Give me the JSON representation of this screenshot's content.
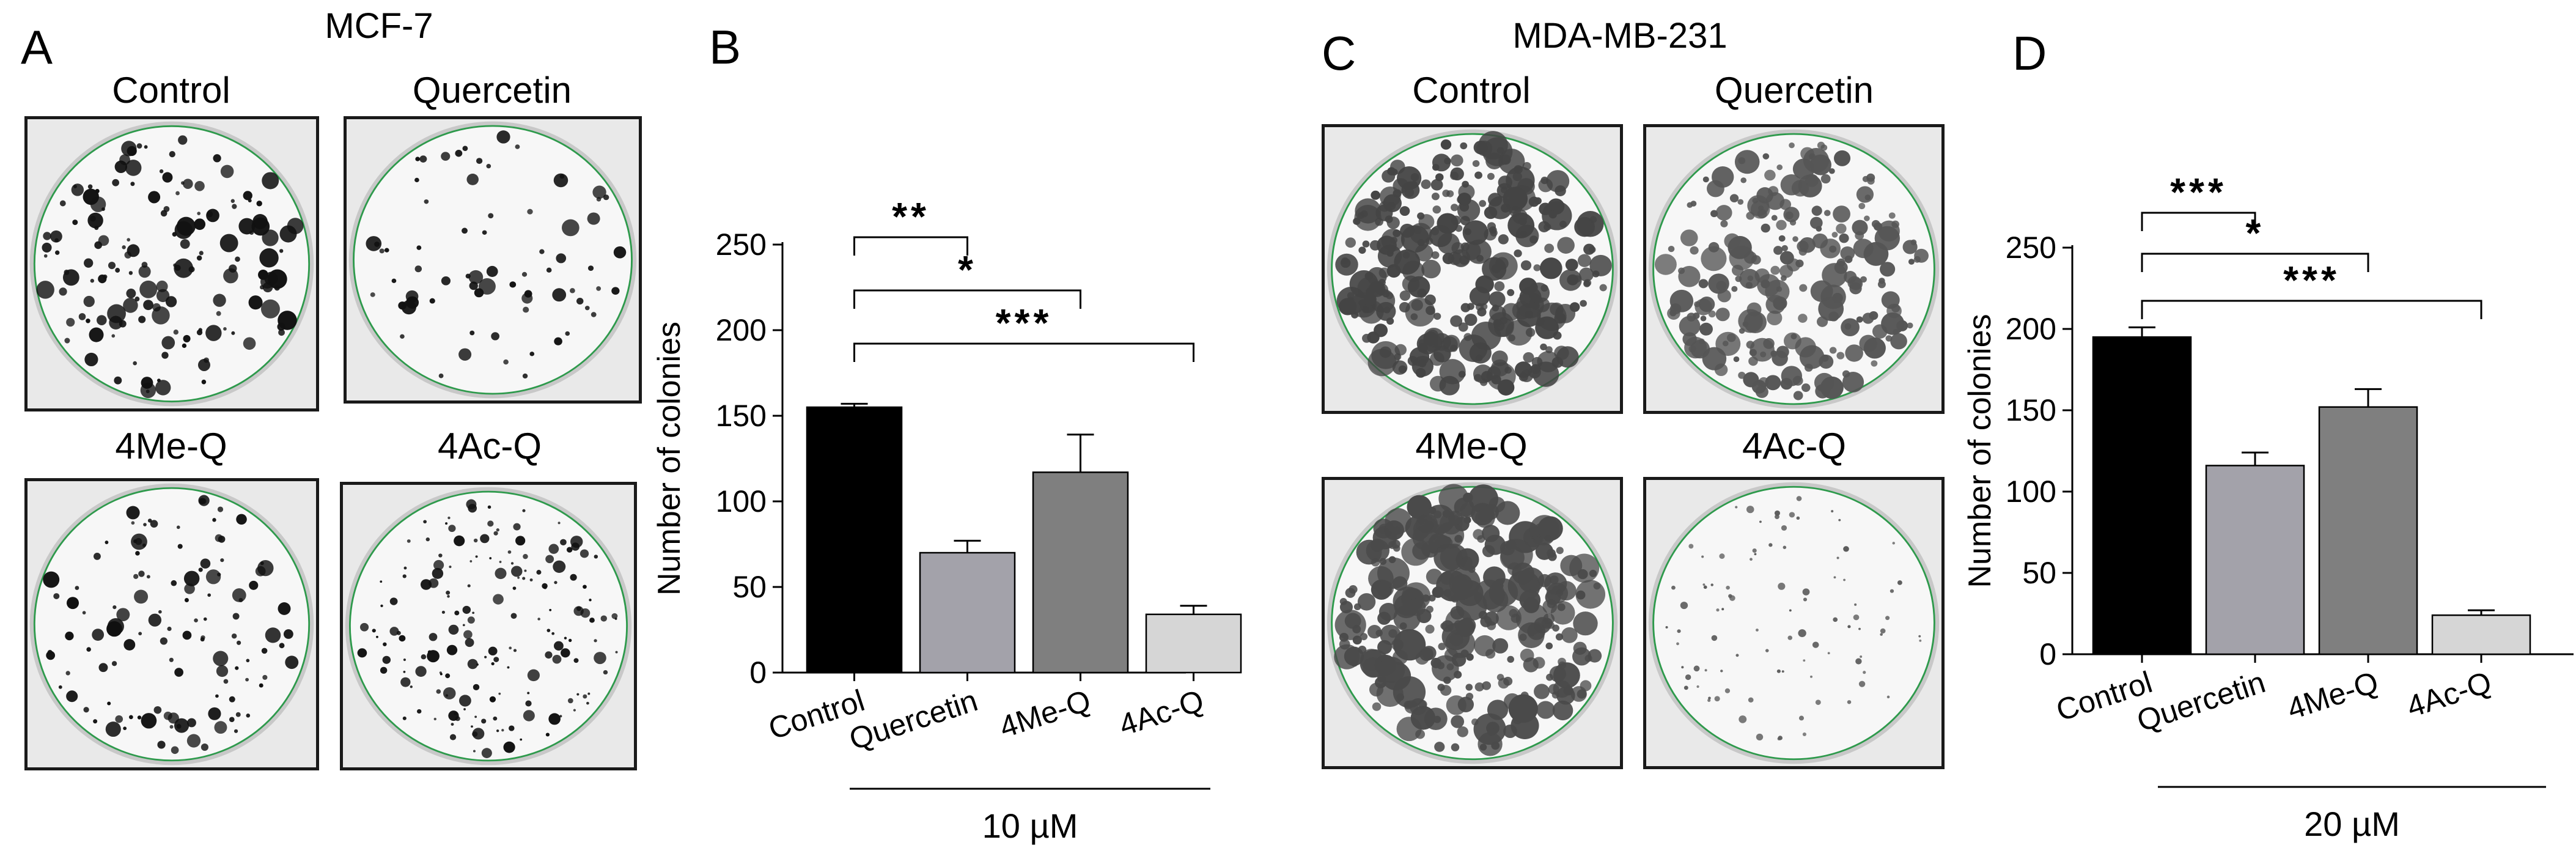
{
  "panels": {
    "A": {
      "letter": "A",
      "title": "MCF-7",
      "plates": [
        {
          "label": "Control",
          "colony_color": "#111111",
          "density": 150,
          "size_min": 3,
          "size_max": 17,
          "seed": 11
        },
        {
          "label": "Quercetin",
          "colony_color": "#111111",
          "density": 70,
          "size_min": 4,
          "size_max": 15,
          "seed": 23
        },
        {
          "label": "4Me-Q",
          "colony_color": "#111111",
          "density": 120,
          "size_min": 3,
          "size_max": 15,
          "seed": 37
        },
        {
          "label": "4Ac-Q",
          "colony_color": "#111111",
          "density": 170,
          "size_min": 2,
          "size_max": 11,
          "seed": 41
        }
      ]
    },
    "C": {
      "letter": "C",
      "title": "MDA-MB-231",
      "plates": [
        {
          "label": "Control",
          "colony_color": "#444444",
          "density": 320,
          "size_min": 6,
          "size_max": 26,
          "seed": 53
        },
        {
          "label": "Quercetin",
          "colony_color": "#555555",
          "density": 230,
          "size_min": 5,
          "size_max": 22,
          "seed": 61
        },
        {
          "label": "4Me-Q",
          "colony_color": "#4a4a4a",
          "density": 300,
          "size_min": 6,
          "size_max": 28,
          "seed": 71
        },
        {
          "label": "4Ac-Q",
          "colony_color": "#5a5a5a",
          "density": 90,
          "size_min": 2,
          "size_max": 7,
          "seed": 83
        }
      ]
    }
  },
  "chart_data": [
    {
      "panel": "B",
      "type": "bar",
      "categories": [
        "Control",
        "Quercetin",
        "4Me-Q",
        "4Ac-Q"
      ],
      "values": [
        155,
        70,
        117,
        34
      ],
      "errors": [
        2,
        7,
        22,
        5
      ],
      "colors": [
        "#000000",
        "#a3a2aa",
        "#7f7f7f",
        "#d6d6d6"
      ],
      "ylabel": "Number of colonies",
      "ylim": [
        0,
        250
      ],
      "yticks": [
        0,
        50,
        100,
        150,
        200,
        250
      ],
      "treatment_label": "10 µM",
      "significance": [
        {
          "from": 0,
          "to": 1,
          "label": "**"
        },
        {
          "from": 0,
          "to": 2,
          "label": "*"
        },
        {
          "from": 0,
          "to": 3,
          "label": "***"
        }
      ]
    },
    {
      "panel": "D",
      "type": "bar",
      "categories": [
        "Control",
        "Quercetin",
        "4Me-Q",
        "4Ac-Q"
      ],
      "values": [
        195,
        116,
        152,
        24
      ],
      "errors": [
        6,
        8,
        11,
        3
      ],
      "colors": [
        "#000000",
        "#a3a2aa",
        "#7f7f7f",
        "#d6d6d6"
      ],
      "ylabel": "Number of colonies",
      "ylim": [
        0,
        250
      ],
      "yticks": [
        0,
        50,
        100,
        150,
        200,
        250
      ],
      "treatment_label": "20 µM",
      "significance": [
        {
          "from": 0,
          "to": 1,
          "label": "***"
        },
        {
          "from": 0,
          "to": 2,
          "label": "*"
        },
        {
          "from": 0,
          "to": 3,
          "label": "***"
        }
      ]
    }
  ],
  "letters": {
    "B": "B",
    "D": "D"
  }
}
